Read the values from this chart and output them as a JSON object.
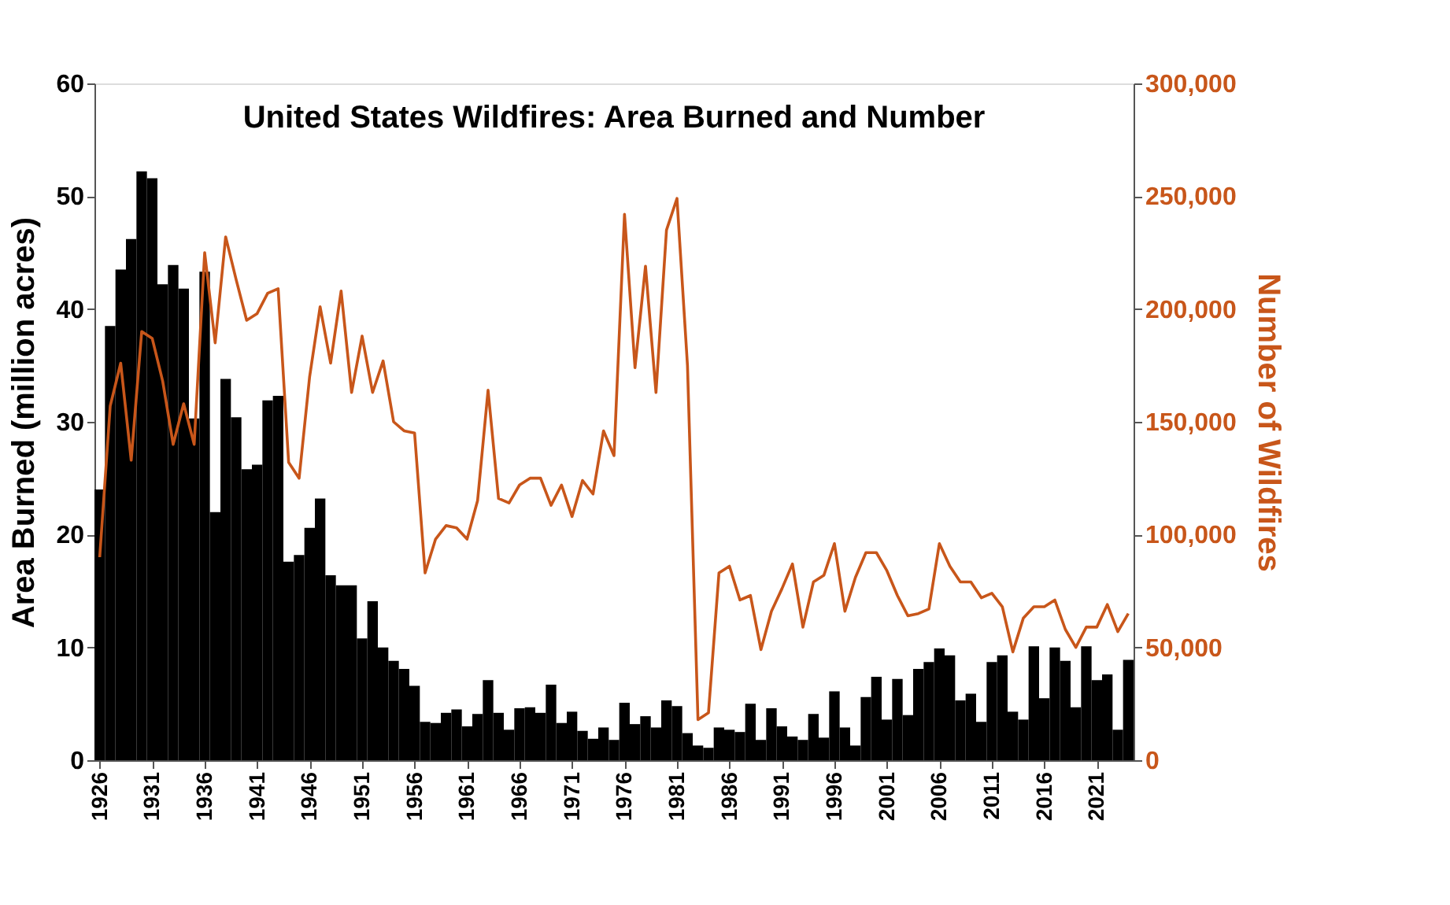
{
  "chart_data": {
    "type": "bar",
    "title": "United States Wildfires: Area Burned and Number",
    "ylabel": "Area Burned (million acres)",
    "y2label": "Number of Wildfires",
    "x": [
      1926,
      1927,
      1928,
      1929,
      1930,
      1931,
      1932,
      1933,
      1934,
      1935,
      1936,
      1937,
      1938,
      1939,
      1940,
      1941,
      1942,
      1943,
      1944,
      1945,
      1946,
      1947,
      1948,
      1949,
      1950,
      1951,
      1952,
      1953,
      1954,
      1955,
      1956,
      1957,
      1958,
      1959,
      1960,
      1961,
      1962,
      1963,
      1964,
      1965,
      1966,
      1967,
      1968,
      1969,
      1970,
      1971,
      1972,
      1973,
      1974,
      1975,
      1976,
      1977,
      1978,
      1979,
      1980,
      1981,
      1982,
      1983,
      1984,
      1985,
      1986,
      1987,
      1988,
      1989,
      1990,
      1991,
      1992,
      1993,
      1994,
      1995,
      1996,
      1997,
      1998,
      1999,
      2000,
      2001,
      2002,
      2003,
      2004,
      2005,
      2006,
      2007,
      2008,
      2009,
      2010,
      2011,
      2012,
      2013,
      2014,
      2015,
      2016,
      2017,
      2018,
      2019,
      2020,
      2021,
      2022,
      2023,
      2024
    ],
    "series": [
      {
        "color": "#000000",
        "values": [
          24.0,
          38.5,
          43.5,
          46.2,
          52.2,
          51.6,
          42.2,
          43.9,
          41.8,
          30.3,
          43.3,
          22.0,
          33.8,
          30.4,
          25.8,
          26.2,
          31.9,
          32.3,
          17.6,
          18.2,
          20.6,
          23.2,
          16.4,
          15.5,
          15.5,
          10.8,
          14.1,
          10.0,
          8.8,
          8.1,
          6.6,
          3.4,
          3.3,
          4.2,
          4.5,
          3.0,
          4.1,
          7.1,
          4.2,
          2.7,
          4.6,
          4.7,
          4.2,
          6.7,
          3.3,
          4.3,
          2.6,
          1.9,
          2.9,
          1.8,
          5.1,
          3.2,
          3.9,
          2.9,
          5.3,
          4.8,
          2.4,
          1.3,
          1.1,
          2.9,
          2.7,
          2.5,
          5.0,
          1.8,
          4.6,
          3.0,
          2.1,
          1.8,
          4.1,
          2.0,
          6.1,
          2.9,
          1.3,
          5.6,
          7.4,
          3.6,
          7.2,
          4.0,
          8.1,
          8.7,
          9.9,
          9.3,
          5.3,
          5.9,
          3.4,
          8.7,
          9.3,
          4.3,
          3.6,
          10.1,
          5.5,
          10.0,
          8.8,
          4.7,
          10.1,
          7.1,
          7.6,
          2.7,
          8.9
        ]
      },
      {
        "type": "line",
        "axis": "y2",
        "color": "#c8561a",
        "values": [
          90000,
          157000,
          176000,
          133000,
          190000,
          187000,
          168000,
          140000,
          158000,
          140000,
          225000,
          185000,
          232000,
          213000,
          195000,
          198000,
          207000,
          209000,
          132000,
          125000,
          170000,
          201000,
          176000,
          208000,
          163000,
          188000,
          163000,
          177000,
          150000,
          146000,
          145000,
          83000,
          98000,
          104000,
          103000,
          98000,
          115000,
          164000,
          116000,
          114000,
          122000,
          125000,
          125000,
          113000,
          122000,
          108000,
          124000,
          118000,
          146000,
          135000,
          242000,
          174000,
          219000,
          163000,
          235000,
          249000,
          175000,
          18000,
          21000,
          83000,
          86000,
          71000,
          73000,
          49000,
          66000,
          76000,
          87000,
          59000,
          79000,
          82000,
          96000,
          66000,
          81000,
          92000,
          92000,
          84000,
          73000,
          64000,
          65000,
          67000,
          96000,
          86000,
          79000,
          79000,
          72000,
          74000,
          68000,
          48000,
          63000,
          68000,
          68000,
          71000,
          58000,
          50000,
          59000,
          59000,
          69000,
          57000,
          65000
        ]
      }
    ],
    "xlim": [
      1925.5,
      2024.5
    ],
    "xticks": [
      1926,
      1931,
      1936,
      1941,
      1946,
      1951,
      1956,
      1961,
      1966,
      1971,
      1976,
      1981,
      1986,
      1991,
      1996,
      2001,
      2006,
      2011,
      2016,
      2021
    ],
    "ylim": [
      0,
      60
    ],
    "yticks": [
      0,
      10,
      20,
      30,
      40,
      50,
      60
    ],
    "y2lim": [
      0,
      300000
    ],
    "y2ticks": [
      {
        "value": 0,
        "label": "0"
      },
      {
        "value": 50000,
        "label": "50,000"
      },
      {
        "value": 100000,
        "label": "100,000"
      },
      {
        "value": 150000,
        "label": "150,000"
      },
      {
        "value": 200000,
        "label": "200,000"
      },
      {
        "value": 250000,
        "label": "250,000"
      },
      {
        "value": 300000,
        "label": "300,000"
      }
    ],
    "grid": false,
    "marker": "none",
    "line_style": "solid"
  }
}
